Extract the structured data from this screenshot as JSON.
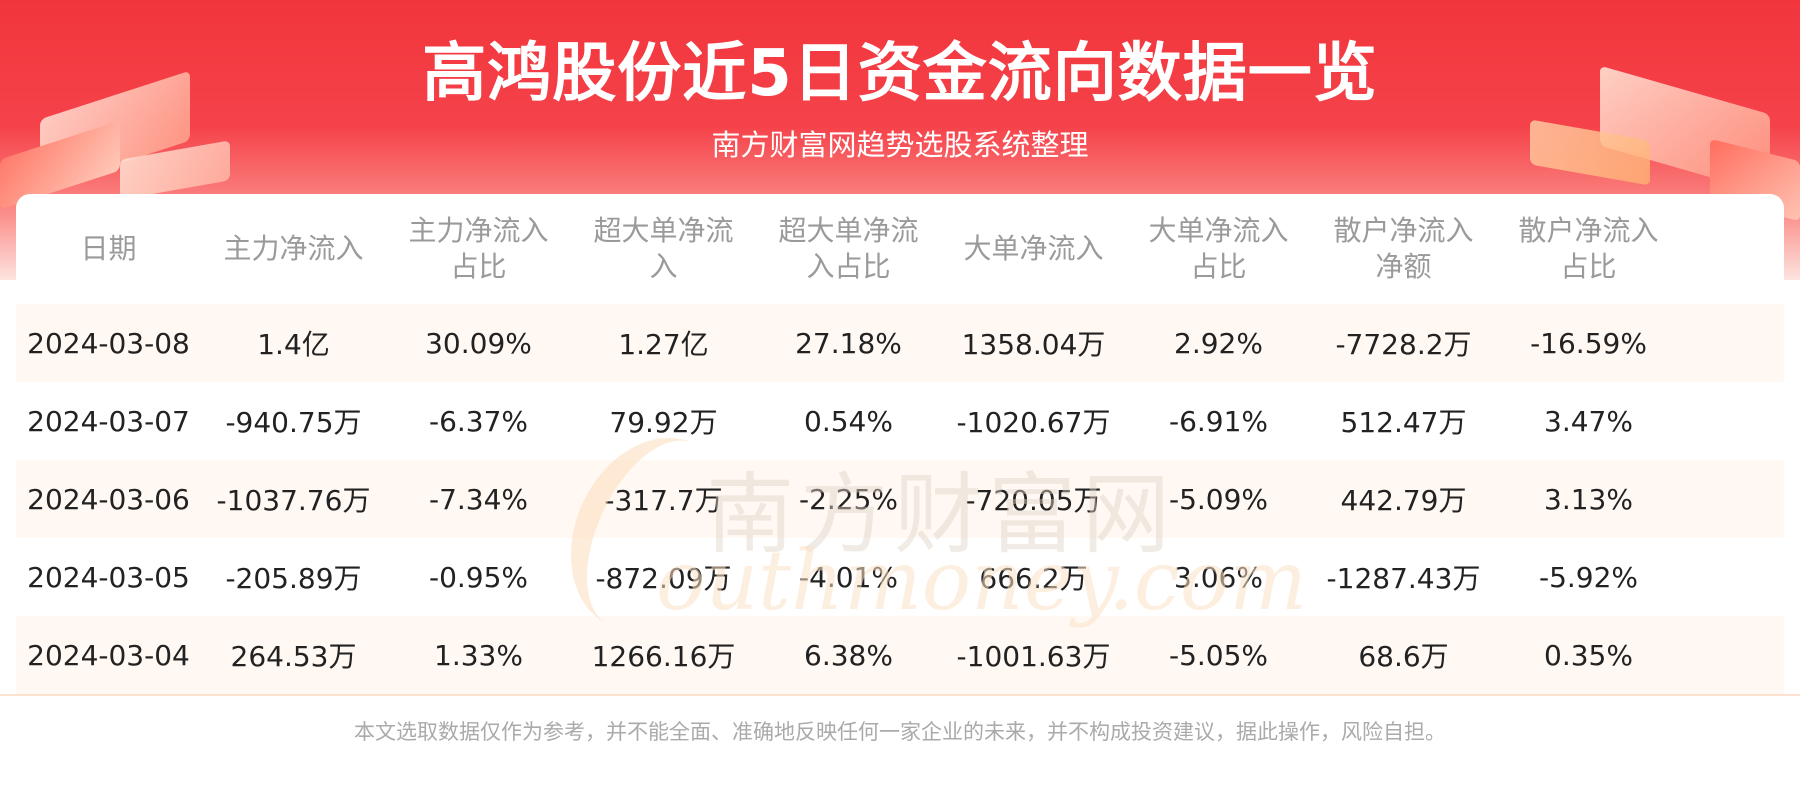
{
  "header": {
    "title": "高鸿股份近5日资金流向数据一览",
    "subtitle": "南方财富网趋势选股系统整理"
  },
  "watermark": {
    "cn": "南方财富网",
    "en": "outhmoney.com"
  },
  "table": {
    "headers": [
      [
        "日期"
      ],
      [
        "主力净流入"
      ],
      [
        "主力净流入",
        "占比"
      ],
      [
        "超大单净流",
        "入"
      ],
      [
        "超大单净流",
        "入占比"
      ],
      [
        "大单净流入"
      ],
      [
        "大单净流入",
        "占比"
      ],
      [
        "散户净流入",
        "净额"
      ],
      [
        "散户净流入",
        "占比"
      ]
    ],
    "rows": [
      [
        "2024-03-08",
        "1.4亿",
        "30.09%",
        "1.27亿",
        "27.18%",
        "1358.04万",
        "2.92%",
        "-7728.2万",
        "-16.59%"
      ],
      [
        "2024-03-07",
        "-940.75万",
        "-6.37%",
        "79.92万",
        "0.54%",
        "-1020.67万",
        "-6.91%",
        "512.47万",
        "3.47%"
      ],
      [
        "2024-03-06",
        "-1037.76万",
        "-7.34%",
        "-317.7万",
        "-2.25%",
        "-720.05万",
        "-5.09%",
        "442.79万",
        "3.13%"
      ],
      [
        "2024-03-05",
        "-205.89万",
        "-0.95%",
        "-872.09万",
        "-4.01%",
        "666.2万",
        "3.06%",
        "-1287.43万",
        "-5.92%"
      ],
      [
        "2024-03-04",
        "264.53万",
        "1.33%",
        "1266.16万",
        "6.38%",
        "-1001.63万",
        "-5.05%",
        "68.6万",
        "0.35%"
      ]
    ]
  },
  "footer": {
    "disclaimer": "本文选取数据仅作为参考，并不能全面、准确地反映任何一家企业的未来，并不构成投资建议，据此操作，风险自担。"
  },
  "colors": {
    "banner_red": "#f2353c",
    "row_highlight": "#fff8f3",
    "header_text": "#9a9a9a"
  }
}
